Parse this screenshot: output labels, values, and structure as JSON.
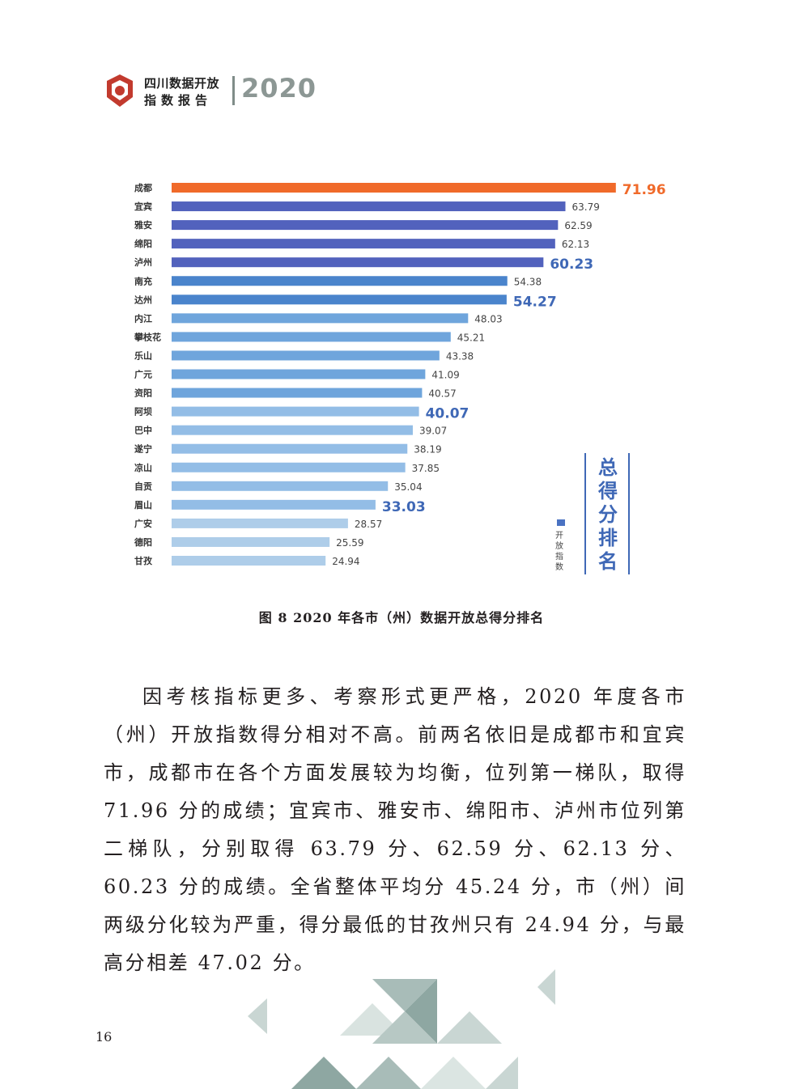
{
  "header": {
    "brand_line1": "四川数据开放",
    "brand_line2": "指数报告",
    "year": "2020"
  },
  "chart_data": {
    "type": "bar",
    "orientation": "horizontal",
    "title": "总得分排名",
    "legend": [
      "开放指数"
    ],
    "categories": [
      "成都",
      "宜宾",
      "雅安",
      "绵阳",
      "泸州",
      "南充",
      "达州",
      "内江",
      "攀枝花",
      "乐山",
      "广元",
      "资阳",
      "阿坝",
      "巴中",
      "遂宁",
      "凉山",
      "自贡",
      "眉山",
      "广安",
      "德阳",
      "甘孜"
    ],
    "values": [
      71.96,
      63.79,
      62.59,
      62.13,
      60.23,
      54.38,
      54.27,
      48.03,
      45.21,
      43.38,
      41.09,
      40.57,
      40.07,
      39.07,
      38.19,
      37.85,
      35.04,
      33.03,
      28.57,
      25.59,
      24.94
    ],
    "value_labels": [
      "71.96",
      "63.79",
      "62.59",
      "62.13",
      "60.23",
      "54.38",
      "54.27",
      "48.03",
      "45.21",
      "43.38",
      "41.09",
      "40.57",
      "40.07",
      "39.07",
      "38.19",
      "37.85",
      "35.04",
      "33.03",
      "28.57",
      "25.59",
      "24.94"
    ],
    "highlighted": [
      "成都",
      "泸州",
      "达州",
      "阿坝",
      "眉山"
    ],
    "colors": {
      "top": "#f06a2a",
      "dark": "#5262bd",
      "mid": "#4a84cc",
      "light": "#6fa5dc",
      "lighter": "#93bde6",
      "lightest": "#aecde9",
      "highlight_label_orange": "#f06a2a",
      "highlight_label_blue": "#3f68b6"
    }
  },
  "caption": "图 8  2020 年各市（州）数据开放总得分排名",
  "paragraph": "因考核指标更多、考察形式更严格，2020 年度各市（州）开放指数得分相对不高。前两名依旧是成都市和宜宾市，成都市在各个方面发展较为均衡，位列第一梯队，取得 71.96 分的成绩；宜宾市、雅安市、绵阳市、泸州市位列第二梯队，分别取得 63.79 分、62.59 分、62.13 分、60.23 分的成绩。全省整体平均分 45.24 分，市（州）间两级分化较为严重，得分最低的甘孜州只有 24.94 分，与最高分相差 47.02 分。",
  "page_number": "16"
}
